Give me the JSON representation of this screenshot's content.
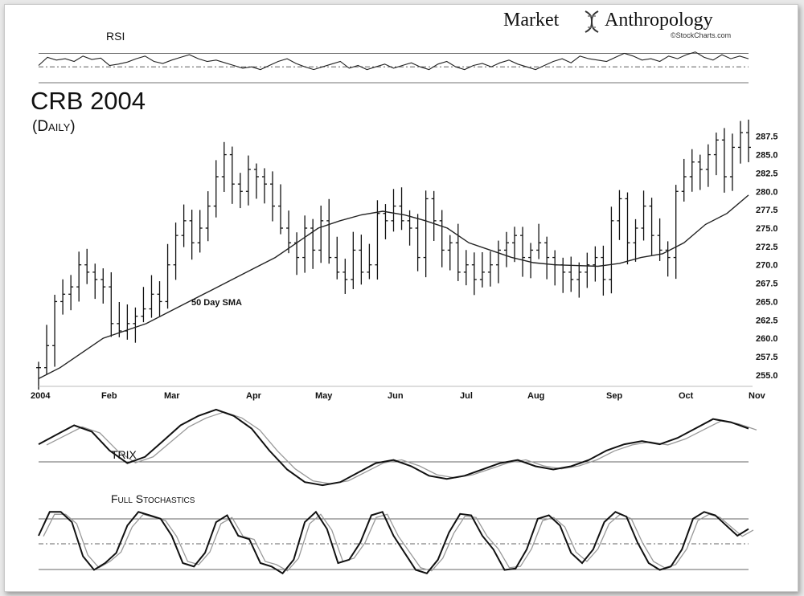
{
  "brand": {
    "name_left": "Market",
    "name_right": "Anthropology",
    "credit": "©StockCharts.com",
    "icon": "dna-helix-icon"
  },
  "chart_data": {
    "type": "ohlc",
    "title": "CRB 2004",
    "subtitle": "(Daily)",
    "sma_label": "50 Day SMA",
    "ylim": [
      254,
      289
    ],
    "y_ticks": [
      "287.5",
      "285.0",
      "282.5",
      "280.0",
      "277.5",
      "275.0",
      "272.5",
      "270.0",
      "267.5",
      "265.0",
      "262.5",
      "260.0",
      "257.5",
      "255.0"
    ],
    "x_labels": [
      "2004",
      "Feb",
      "Mar",
      "Apr",
      "May",
      "Jun",
      "Jul",
      "Aug",
      "Sep",
      "Oct",
      "Nov"
    ],
    "price_series": [
      256,
      259,
      265,
      266,
      267,
      270,
      269,
      268,
      267,
      262,
      261,
      262,
      263,
      264,
      266,
      265,
      270,
      274,
      276,
      273,
      275,
      278,
      282,
      285,
      281,
      280,
      283,
      282,
      281,
      278,
      275,
      273,
      271,
      275,
      272,
      276,
      271,
      269,
      268,
      272,
      269,
      270,
      277,
      276,
      278,
      276,
      275,
      271,
      279,
      276,
      272,
      273,
      269,
      270,
      268,
      269,
      270,
      272,
      273,
      274,
      271,
      272,
      273,
      271,
      270,
      269,
      268,
      269,
      270,
      271,
      268,
      276,
      279,
      273,
      275,
      278,
      274,
      272,
      271,
      280,
      282,
      284,
      283,
      285,
      287,
      282,
      286,
      288,
      286
    ],
    "sma_series": [
      254.5,
      256,
      258,
      260,
      261,
      262,
      263.5,
      265,
      266.5,
      268,
      269.5,
      271,
      273,
      275,
      276,
      276.8,
      277.3,
      276.8,
      276,
      275,
      273,
      272,
      271,
      270.3,
      270,
      269.9,
      269.8,
      270.2,
      271,
      271.5,
      273,
      275.5,
      277,
      279.5
    ],
    "indicators": [
      {
        "name": "RSI",
        "label": "RSI"
      },
      {
        "name": "TRIX",
        "label": "TRIX"
      },
      {
        "name": "Full Stochastics",
        "label": "Full Stochastics"
      }
    ],
    "rsi_series": [
      52,
      64,
      60,
      62,
      58,
      66,
      61,
      63,
      52,
      54,
      57,
      62,
      66,
      58,
      55,
      60,
      64,
      68,
      62,
      58,
      60,
      56,
      52,
      48,
      50,
      46,
      52,
      58,
      62,
      55,
      50,
      46,
      50,
      54,
      58,
      48,
      52,
      46,
      50,
      54,
      48,
      52,
      56,
      50,
      46,
      54,
      58,
      50,
      46,
      52,
      55,
      50,
      56,
      60,
      54,
      50,
      46,
      52,
      58,
      62,
      56,
      66,
      62,
      60,
      58,
      64,
      70,
      66,
      60,
      62,
      58,
      66,
      62,
      68,
      72,
      64,
      60,
      68,
      62,
      66,
      62
    ],
    "trix_series": [
      0.4,
      0.7,
      1.0,
      0.8,
      0.2,
      -0.2,
      0.0,
      0.5,
      1.0,
      1.3,
      1.5,
      1.3,
      0.9,
      0.2,
      -0.4,
      -0.8,
      -0.9,
      -0.8,
      -0.5,
      -0.2,
      -0.1,
      -0.3,
      -0.6,
      -0.7,
      -0.6,
      -0.4,
      -0.2,
      -0.1,
      -0.3,
      -0.4,
      -0.3,
      -0.1,
      0.2,
      0.4,
      0.5,
      0.4,
      0.6,
      0.9,
      1.2,
      1.1,
      0.9
    ],
    "stoch_series": [
      60,
      95,
      95,
      80,
      30,
      10,
      20,
      35,
      75,
      95,
      90,
      85,
      60,
      20,
      15,
      35,
      80,
      90,
      60,
      55,
      20,
      15,
      5,
      25,
      80,
      95,
      70,
      20,
      25,
      50,
      90,
      95,
      60,
      35,
      10,
      5,
      25,
      65,
      92,
      90,
      60,
      40,
      10,
      12,
      40,
      85,
      90,
      75,
      35,
      20,
      40,
      80,
      95,
      88,
      50,
      20,
      10,
      15,
      40,
      85,
      95,
      90,
      75,
      60,
      70
    ]
  }
}
